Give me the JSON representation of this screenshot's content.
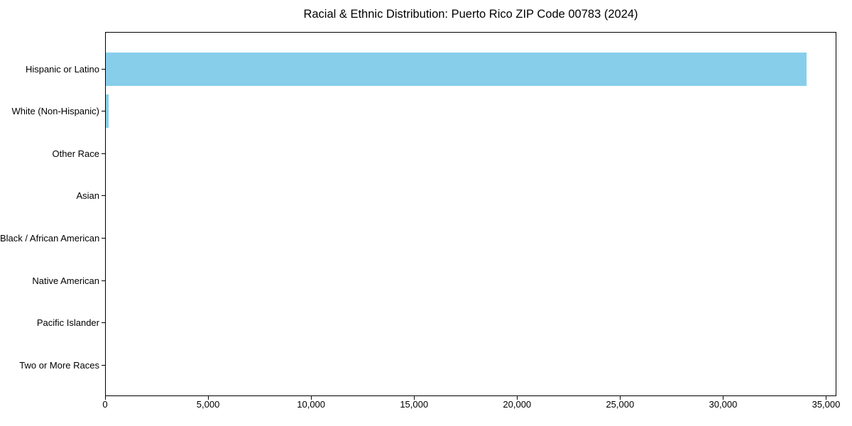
{
  "chart_data": {
    "type": "bar",
    "orientation": "horizontal",
    "title": "Racial & Ethnic Distribution: Puerto Rico ZIP Code 00783 (2024)",
    "categories": [
      "Hispanic or Latino",
      "White (Non-Hispanic)",
      "Other Race",
      "Asian",
      "Black / African American",
      "Native American",
      "Pacific Islander",
      "Two or More Races"
    ],
    "values": [
      34070,
      140,
      0,
      0,
      0,
      0,
      0,
      0
    ],
    "bar_color": "#87CEEB",
    "xlabel": "",
    "ylabel": "",
    "xlim": [
      0,
      35500
    ],
    "x_ticks": [
      0,
      5000,
      10000,
      15000,
      20000,
      25000,
      30000,
      35000
    ],
    "x_tick_labels": [
      "0",
      "5,000",
      "10,000",
      "15,000",
      "20,000",
      "25,000",
      "30,000",
      "35,000"
    ],
    "grid": false,
    "legend": null,
    "background_color": "#ffffff",
    "text_color": "#000000"
  }
}
